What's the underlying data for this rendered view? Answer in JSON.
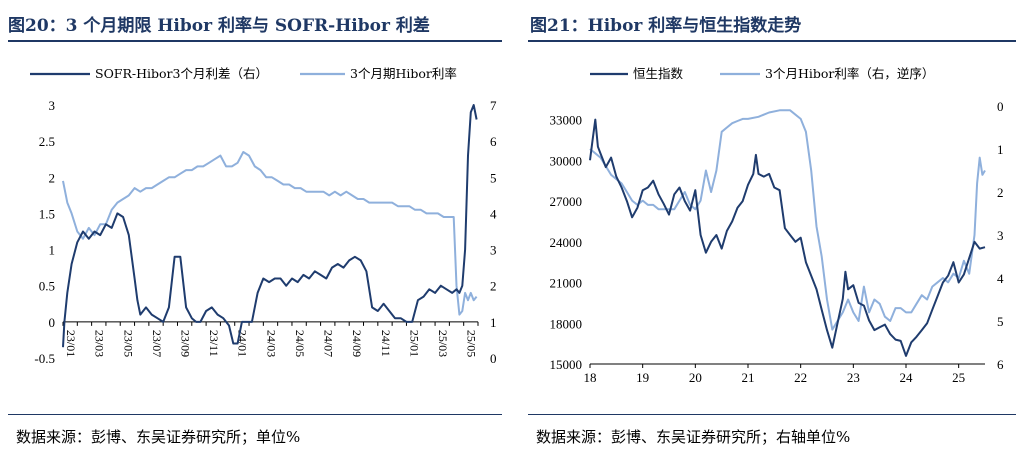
{
  "charts_meta": {
    "left_title": "图20：3 个月期限 Hibor 利率与 SOFR-Hibor 利差",
    "right_title": "图21：Hibor 利率与恒生指数走势",
    "left_source": "数据来源：彭博、东吴证券研究所；单位%",
    "right_source": "数据来源：彭博、东吴证券研究所；右轴单位%"
  },
  "colors": {
    "dark": "#1f3c6e",
    "light": "#8fb0dc",
    "title": "#1f3864"
  },
  "chart_data": [
    {
      "type": "line",
      "title": "图20：3 个月期限 Hibor 利率与 SOFR-Hibor 利差",
      "x_ticks": [
        "23/01",
        "23/03",
        "23/05",
        "23/07",
        "23/09",
        "23/11",
        "24/01",
        "24/03",
        "24/05",
        "24/07",
        "24/09",
        "24/11",
        "25/01",
        "25/03",
        "25/05"
      ],
      "x_range": [
        0,
        29
      ],
      "ylim_left": [
        -0.5,
        3
      ],
      "yticks_left": [
        "-0.5",
        "0",
        "0.5",
        "1",
        "1.5",
        "2",
        "2.5",
        "3"
      ],
      "ylim_right": [
        0,
        7
      ],
      "yticks_right": [
        "0",
        "1",
        "2",
        "3",
        "4",
        "5",
        "6",
        "7"
      ],
      "legend_position": "top",
      "series": [
        {
          "name": "SOFR-Hibor3个月利差（右）",
          "axis": "left",
          "color": "#1f3c6e",
          "x": [
            0,
            0.1,
            0.3,
            0.6,
            1.0,
            1.4,
            1.8,
            2.2,
            2.6,
            3.0,
            3.4,
            3.8,
            4.2,
            4.6,
            5.0,
            5.2,
            5.4,
            5.8,
            6.2,
            6.6,
            7.0,
            7.4,
            7.8,
            8.2,
            8.6,
            9.0,
            9.3,
            9.6,
            10.0,
            10.4,
            10.8,
            11.2,
            11.6,
            11.9,
            12.2,
            12.5,
            12.8,
            13.2,
            13.6,
            14.0,
            14.4,
            14.8,
            15.2,
            15.6,
            16.0,
            16.4,
            16.8,
            17.2,
            17.6,
            18.0,
            18.4,
            18.8,
            19.2,
            19.6,
            20.0,
            20.4,
            20.8,
            21.2,
            21.6,
            22.0,
            22.4,
            22.8,
            23.2,
            23.6,
            24.0,
            24.4,
            24.8,
            25.2,
            25.6,
            26.0,
            26.4,
            26.8,
            27.2,
            27.5,
            27.7,
            27.9,
            28.1,
            28.3,
            28.5,
            28.7,
            28.9
          ],
          "values": [
            -0.35,
            0.0,
            0.4,
            0.8,
            1.1,
            1.25,
            1.15,
            1.25,
            1.2,
            1.35,
            1.3,
            1.5,
            1.45,
            1.2,
            0.6,
            0.3,
            0.1,
            0.2,
            0.1,
            0.05,
            0.0,
            0.2,
            0.9,
            0.9,
            0.2,
            0.05,
            0.0,
            0.0,
            0.15,
            0.2,
            0.1,
            0.05,
            -0.05,
            -0.3,
            -0.3,
            0.0,
            0.0,
            0.0,
            0.4,
            0.6,
            0.55,
            0.6,
            0.6,
            0.5,
            0.6,
            0.55,
            0.65,
            0.6,
            0.7,
            0.65,
            0.6,
            0.75,
            0.8,
            0.75,
            0.85,
            0.9,
            0.85,
            0.7,
            0.2,
            0.15,
            0.25,
            0.15,
            0.05,
            0.05,
            0.0,
            0.0,
            0.3,
            0.35,
            0.45,
            0.4,
            0.5,
            0.45,
            0.4,
            0.45,
            0.4,
            0.5,
            1.0,
            2.3,
            2.9,
            3.0,
            2.8
          ]
        },
        {
          "name": "3个月期Hibor利率",
          "axis": "right",
          "color": "#8fb0dc",
          "x": [
            0,
            0.3,
            0.6,
            1.0,
            1.4,
            1.8,
            2.2,
            2.6,
            3.0,
            3.4,
            3.8,
            4.2,
            4.6,
            5.0,
            5.4,
            5.8,
            6.2,
            6.6,
            7.0,
            7.4,
            7.8,
            8.2,
            8.6,
            9.0,
            9.4,
            9.8,
            10.2,
            10.6,
            11.0,
            11.4,
            11.8,
            12.2,
            12.6,
            13.0,
            13.4,
            13.8,
            14.2,
            14.6,
            15.0,
            15.4,
            15.8,
            16.2,
            16.6,
            17.0,
            17.4,
            17.8,
            18.2,
            18.6,
            19.0,
            19.4,
            19.8,
            20.2,
            20.6,
            21.0,
            21.4,
            21.8,
            22.2,
            22.6,
            23.0,
            23.4,
            23.8,
            24.2,
            24.6,
            25.0,
            25.4,
            25.8,
            26.2,
            26.6,
            27.0,
            27.3,
            27.5,
            27.7,
            27.9,
            28.1,
            28.3,
            28.5,
            28.7,
            28.9
          ],
          "values": [
            4.9,
            4.3,
            4.0,
            3.5,
            3.3,
            3.6,
            3.4,
            3.7,
            3.7,
            4.1,
            4.3,
            4.4,
            4.5,
            4.7,
            4.6,
            4.7,
            4.7,
            4.8,
            4.9,
            5.0,
            5.0,
            5.1,
            5.2,
            5.2,
            5.3,
            5.3,
            5.4,
            5.5,
            5.6,
            5.3,
            5.3,
            5.4,
            5.7,
            5.6,
            5.3,
            5.2,
            5.0,
            5.0,
            4.9,
            4.8,
            4.8,
            4.7,
            4.7,
            4.6,
            4.6,
            4.6,
            4.6,
            4.5,
            4.6,
            4.5,
            4.6,
            4.5,
            4.4,
            4.4,
            4.3,
            4.3,
            4.3,
            4.3,
            4.3,
            4.2,
            4.2,
            4.2,
            4.1,
            4.1,
            4.0,
            4.0,
            4.0,
            3.9,
            3.9,
            3.9,
            2.0,
            1.2,
            1.3,
            1.8,
            1.6,
            1.8,
            1.6,
            1.7
          ]
        }
      ]
    },
    {
      "type": "line",
      "title": "图21：Hibor 利率与恒生指数走势",
      "x_ticks": [
        "18",
        "19",
        "20",
        "21",
        "22",
        "23",
        "24",
        "25"
      ],
      "x_range": [
        18,
        25.5
      ],
      "ylim_left": [
        15000,
        34000
      ],
      "yticks_left": [
        "15000",
        "18000",
        "21000",
        "24000",
        "27000",
        "30000",
        "33000"
      ],
      "ylim_right": [
        6,
        0
      ],
      "yticks_right": [
        "0",
        "1",
        "2",
        "3",
        "4",
        "5",
        "6"
      ],
      "right_axis_reversed": true,
      "legend_position": "top",
      "series": [
        {
          "name": "恒生指数",
          "axis": "left",
          "color": "#1f3c6e",
          "x": [
            18.0,
            18.05,
            18.1,
            18.15,
            18.2,
            18.3,
            18.4,
            18.5,
            18.6,
            18.7,
            18.8,
            18.9,
            19.0,
            19.1,
            19.2,
            19.3,
            19.4,
            19.5,
            19.6,
            19.7,
            19.8,
            19.9,
            20.0,
            20.1,
            20.2,
            20.3,
            20.4,
            20.5,
            20.6,
            20.7,
            20.8,
            20.9,
            21.0,
            21.1,
            21.15,
            21.2,
            21.3,
            21.4,
            21.5,
            21.6,
            21.7,
            21.8,
            21.9,
            22.0,
            22.1,
            22.2,
            22.3,
            22.4,
            22.5,
            22.6,
            22.7,
            22.8,
            22.85,
            22.9,
            23.0,
            23.1,
            23.2,
            23.3,
            23.4,
            23.5,
            23.6,
            23.7,
            23.8,
            23.9,
            24.0,
            24.1,
            24.2,
            24.3,
            24.4,
            24.5,
            24.6,
            24.7,
            24.8,
            24.9,
            25.0,
            25.1,
            25.2,
            25.3,
            25.4,
            25.5
          ],
          "values": [
            30000,
            31500,
            33000,
            31000,
            30500,
            29500,
            30200,
            28800,
            28000,
            27000,
            25800,
            26500,
            27800,
            28000,
            28500,
            27500,
            26800,
            26000,
            27500,
            28000,
            27000,
            26300,
            27800,
            24500,
            23200,
            24000,
            24500,
            23500,
            24800,
            25500,
            26500,
            27000,
            28200,
            29000,
            30400,
            29000,
            28800,
            29000,
            28000,
            27800,
            25000,
            24500,
            24000,
            24300,
            22500,
            21500,
            20500,
            19000,
            17500,
            16200,
            18000,
            19800,
            21800,
            20500,
            20800,
            19500,
            19300,
            18200,
            17500,
            17700,
            17900,
            17200,
            16800,
            16700,
            15600,
            16600,
            17000,
            17500,
            18000,
            19000,
            20000,
            21000,
            21500,
            22500,
            21000,
            21600,
            22800,
            24000,
            23500,
            23600
          ]
        },
        {
          "name": "3个月Hibor利率（右，逆序）",
          "axis": "right",
          "color": "#8fb0dc",
          "x": [
            18.0,
            18.1,
            18.2,
            18.3,
            18.4,
            18.5,
            18.6,
            18.7,
            18.8,
            18.9,
            19.0,
            19.1,
            19.2,
            19.3,
            19.4,
            19.5,
            19.6,
            19.7,
            19.8,
            19.9,
            20.0,
            20.1,
            20.2,
            20.3,
            20.4,
            20.5,
            20.6,
            20.7,
            20.8,
            20.9,
            21.0,
            21.2,
            21.4,
            21.6,
            21.8,
            22.0,
            22.1,
            22.2,
            22.3,
            22.4,
            22.5,
            22.6,
            22.7,
            22.8,
            22.9,
            23.0,
            23.1,
            23.2,
            23.3,
            23.4,
            23.5,
            23.6,
            23.7,
            23.8,
            23.9,
            24.0,
            24.1,
            24.2,
            24.3,
            24.4,
            24.5,
            24.6,
            24.7,
            24.8,
            24.9,
            25.0,
            25.1,
            25.2,
            25.3,
            25.35,
            25.4,
            25.45,
            25.5
          ],
          "values": [
            1.0,
            1.1,
            1.2,
            1.4,
            1.6,
            1.7,
            1.8,
            2.0,
            2.2,
            2.3,
            2.2,
            2.3,
            2.3,
            2.4,
            2.4,
            2.4,
            2.4,
            2.2,
            2.0,
            2.3,
            2.4,
            2.2,
            1.5,
            2.0,
            1.5,
            0.6,
            0.5,
            0.4,
            0.35,
            0.3,
            0.3,
            0.25,
            0.15,
            0.1,
            0.1,
            0.3,
            0.6,
            1.5,
            2.8,
            3.5,
            4.5,
            5.2,
            5.0,
            4.8,
            4.5,
            4.8,
            5.0,
            4.2,
            4.8,
            4.5,
            4.6,
            4.9,
            5.0,
            4.7,
            4.7,
            4.8,
            4.8,
            4.6,
            4.4,
            4.5,
            4.2,
            4.1,
            4.0,
            4.1,
            3.9,
            4.0,
            3.6,
            3.9,
            3.0,
            1.8,
            1.2,
            1.6,
            1.5
          ]
        }
      ]
    }
  ]
}
